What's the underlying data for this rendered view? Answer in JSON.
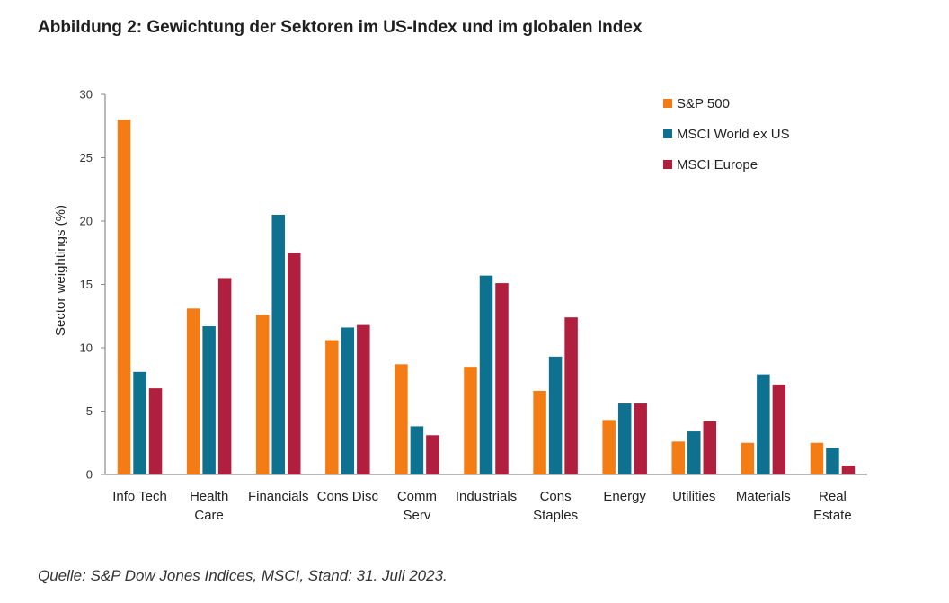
{
  "page": {
    "title": "Abbildung 2: Gewichtung der Sektoren im US-Index und im globalen Index",
    "source": "Quelle: S&P Dow Jones Indices, MSCI, Stand: 31. Juli 2023."
  },
  "chart_data": {
    "type": "bar",
    "title": "",
    "xlabel": "",
    "ylabel": "Sector weightings (%)",
    "ylim": [
      0,
      30
    ],
    "yticks": [
      0,
      5,
      10,
      15,
      20,
      25,
      30
    ],
    "grid": false,
    "legend_position": "top-right",
    "categories": [
      [
        "Info Tech"
      ],
      [
        "Health",
        "Care"
      ],
      [
        "Financials"
      ],
      [
        "Cons Disc"
      ],
      [
        "Comm",
        "Serv"
      ],
      [
        "Industrials"
      ],
      [
        "Cons",
        "Staples"
      ],
      [
        "Energy"
      ],
      [
        "Utilities"
      ],
      [
        "Materials"
      ],
      [
        "Real",
        "Estate"
      ]
    ],
    "series": [
      {
        "name": "S&P 500",
        "color": "#f47c14",
        "values": [
          28.0,
          13.1,
          12.6,
          10.6,
          8.7,
          8.5,
          6.6,
          4.3,
          2.6,
          2.5,
          2.5
        ]
      },
      {
        "name": "MSCI World ex US",
        "color": "#0e7190",
        "values": [
          8.1,
          11.7,
          20.5,
          11.6,
          3.8,
          15.7,
          9.3,
          5.6,
          3.4,
          7.9,
          2.1
        ]
      },
      {
        "name": "MSCI Europe",
        "color": "#b01f3d",
        "values": [
          6.8,
          15.5,
          17.5,
          11.8,
          3.1,
          15.1,
          12.4,
          5.6,
          4.2,
          7.1,
          0.7
        ]
      }
    ]
  }
}
